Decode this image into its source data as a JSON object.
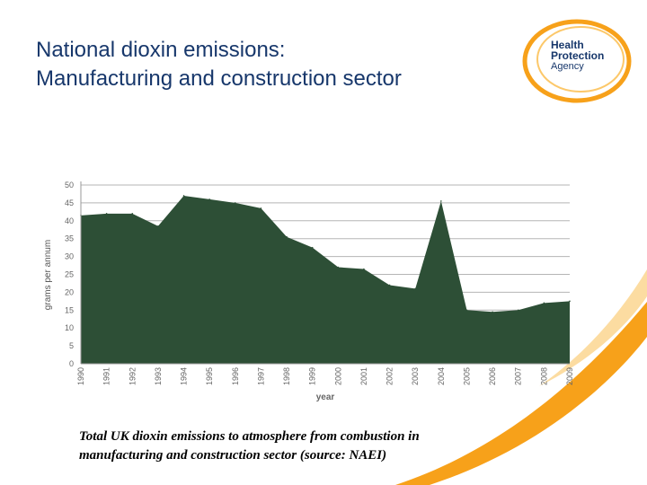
{
  "slide": {
    "title_line1": "National dioxin emissions:",
    "title_line2": "Manufacturing and construction sector",
    "caption_line1": "Total UK dioxin emissions to atmosphere from combustion in",
    "caption_line2": "manufacturing and construction sector (source: NAEI)"
  },
  "logo": {
    "line1": "Health",
    "line2": "Protection",
    "line3": "Agency",
    "ring_color": "#f7a11a",
    "text_color": "#17376b"
  },
  "colors": {
    "title": "#17376b",
    "area_fill": "#2d4f36",
    "swoosh": "#f7a11a"
  },
  "chart_data": {
    "type": "area",
    "title": "",
    "xlabel": "year",
    "ylabel": "grams per annum",
    "x": [
      "1990",
      "1991",
      "1992",
      "1993",
      "1994",
      "1995",
      "1996",
      "1997",
      "1998",
      "1999",
      "2000",
      "2001",
      "2002",
      "2003",
      "2004",
      "2005",
      "2006",
      "2007",
      "2008",
      "2009"
    ],
    "series": [
      {
        "values": [
          41.5,
          42,
          42,
          38.5,
          47,
          46,
          45,
          43.5,
          35.5,
          32.5,
          27,
          26.5,
          22,
          21,
          45.5,
          15,
          14.5,
          15,
          17,
          17.5
        ]
      }
    ],
    "ylim": [
      0,
      50
    ],
    "yticks": [
      "0",
      "5",
      "10",
      "15",
      "20",
      "25",
      "30",
      "35",
      "40",
      "45",
      "50"
    ],
    "grid": true,
    "legend": "none"
  }
}
